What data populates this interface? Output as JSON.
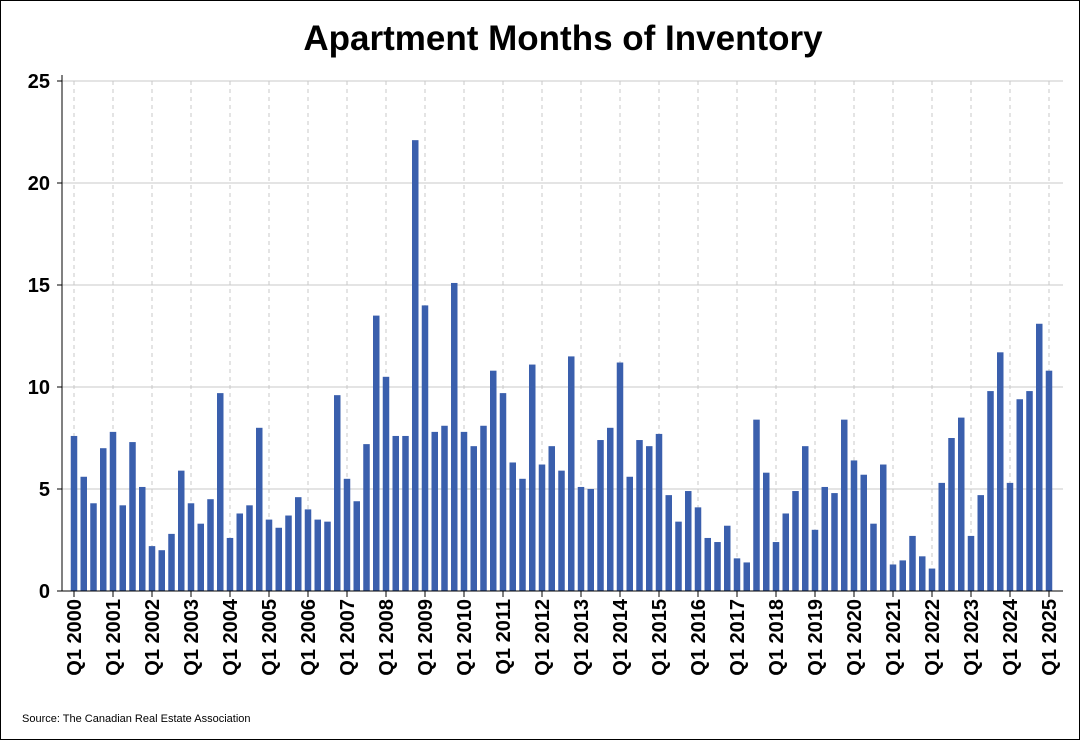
{
  "chart_data": {
    "type": "bar",
    "title": "Apartment Months of Inventory",
    "xlabel": "",
    "ylabel": "",
    "ylim": [
      0,
      25
    ],
    "yticks": [
      0,
      5,
      10,
      15,
      20,
      25
    ],
    "grid": true,
    "bar_color": "#3A5FAD",
    "source": "Source: The Canadian Real Estate Association",
    "x_tick_labels": [
      "Q1 2000",
      "Q1 2001",
      "Q1 2002",
      "Q1 2003",
      "Q1 2004",
      "Q1 2005",
      "Q1 2006",
      "Q1 2007",
      "Q1 2008",
      "Q1 2009",
      "Q1 2010",
      "Q1 2011",
      "Q1 2012",
      "Q1 2013",
      "Q1 2014",
      "Q1 2015",
      "Q1 2016",
      "Q1 2017",
      "Q1 2018",
      "Q1 2019",
      "Q1 2020",
      "Q1 2021",
      "Q1 2022",
      "Q1 2023",
      "Q1 2024",
      "Q1 2025"
    ],
    "start": "Q1 2000",
    "values": [
      7.6,
      5.6,
      4.3,
      7.0,
      7.8,
      4.2,
      7.3,
      5.1,
      2.2,
      2.0,
      2.8,
      5.9,
      4.3,
      3.3,
      4.5,
      9.7,
      2.6,
      3.8,
      4.2,
      8.0,
      3.5,
      3.1,
      3.7,
      4.6,
      4.0,
      3.5,
      3.4,
      9.6,
      5.5,
      4.4,
      7.2,
      13.5,
      10.5,
      7.6,
      7.6,
      22.1,
      14.0,
      7.8,
      8.1,
      15.1,
      7.8,
      7.1,
      8.1,
      10.8,
      9.7,
      6.3,
      5.5,
      11.1,
      6.2,
      7.1,
      5.9,
      11.5,
      5.1,
      5.0,
      7.4,
      8.0,
      11.2,
      5.6,
      7.4,
      7.1,
      7.7,
      4.7,
      3.4,
      4.9,
      4.1,
      2.6,
      2.4,
      3.2,
      1.6,
      1.4,
      8.4,
      5.8,
      2.4,
      3.8,
      4.9,
      7.1,
      3.0,
      5.1,
      4.8,
      8.4,
      6.4,
      5.7,
      3.3,
      6.2,
      1.3,
      1.5,
      2.7,
      1.7,
      1.1,
      5.3,
      7.5,
      8.5,
      2.7,
      4.7,
      9.8,
      11.7,
      5.3,
      9.4,
      9.8,
      13.1,
      10.8
    ]
  }
}
